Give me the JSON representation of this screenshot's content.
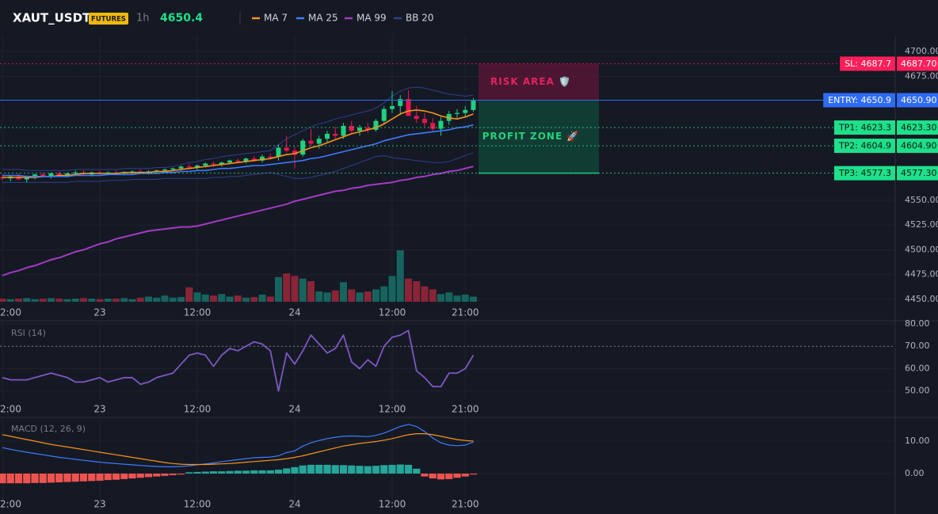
{
  "header": {
    "symbol": "XAUT_USDT",
    "badge": "FUTURES",
    "interval": "1h",
    "last_price": 4650.4
  },
  "chart_data": [
    {
      "type": "candlestick",
      "categories": [
        "2:00",
        null,
        null,
        null,
        null,
        null,
        null,
        null,
        null,
        null,
        null,
        null,
        "23",
        null,
        null,
        null,
        null,
        null,
        null,
        null,
        null,
        null,
        null,
        null,
        "12:00",
        null,
        null,
        null,
        null,
        null,
        null,
        null,
        null,
        null,
        null,
        null,
        "24",
        null,
        null,
        null,
        null,
        null,
        null,
        null,
        null,
        null,
        null,
        null,
        "12:00",
        null,
        null,
        null,
        null,
        null,
        null,
        null,
        null,
        "21:00",
        null
      ],
      "candles": {
        "open": [
          4573,
          4572,
          4574,
          4571,
          4573,
          4576,
          4574,
          4577,
          4575,
          4577,
          4578,
          4576,
          4578,
          4577,
          4578,
          4577,
          4578,
          4579,
          4578,
          4579,
          4580,
          4581,
          4582,
          4584,
          4583,
          4585,
          4587,
          4586,
          4588,
          4590,
          4589,
          4592,
          4590,
          4594,
          4594,
          4603,
          4600,
          4596,
          4610,
          4607,
          4612,
          4617,
          4615,
          4625,
          4620,
          4623,
          4621,
          4630,
          4642,
          4645,
          4652,
          4635,
          4632,
          4628,
          4622,
          4630,
          4637,
          4638,
          4641
        ],
        "high": [
          4576,
          4575,
          4577,
          4575,
          4577,
          4578,
          4578,
          4579,
          4578,
          4580,
          4580,
          4579,
          4580,
          4579,
          4580,
          4579,
          4580,
          4581,
          4580,
          4581,
          4582,
          4583,
          4585,
          4587,
          4586,
          4588,
          4589,
          4589,
          4591,
          4592,
          4593,
          4595,
          4596,
          4597,
          4606,
          4615,
          4604,
          4612,
          4622,
          4615,
          4620,
          4624,
          4628,
          4630,
          4626,
          4628,
          4632,
          4645,
          4660,
          4656,
          4661,
          4645,
          4638,
          4633,
          4634,
          4640,
          4642,
          4645,
          4653
        ],
        "low": [
          4570,
          4569,
          4571,
          4568,
          4571,
          4573,
          4572,
          4574,
          4573,
          4575,
          4575,
          4574,
          4576,
          4575,
          4576,
          4575,
          4576,
          4577,
          4576,
          4577,
          4578,
          4579,
          4580,
          4582,
          4581,
          4583,
          4584,
          4584,
          4586,
          4587,
          4587,
          4589,
          4588,
          4591,
          4590,
          4598,
          4582,
          4594,
          4605,
          4602,
          4608,
          4612,
          4612,
          4618,
          4615,
          4618,
          4619,
          4627,
          4638,
          4636,
          4640,
          4628,
          4624,
          4620,
          4615,
          4626,
          4633,
          4634,
          4639
        ],
        "close": [
          4572,
          4574,
          4571,
          4573,
          4576,
          4574,
          4577,
          4575,
          4577,
          4578,
          4576,
          4578,
          4577,
          4578,
          4577,
          4578,
          4579,
          4578,
          4579,
          4580,
          4581,
          4582,
          4584,
          4583,
          4585,
          4587,
          4586,
          4588,
          4590,
          4589,
          4592,
          4590,
          4594,
          4593,
          4603,
          4600,
          4596,
          4610,
          4607,
          4612,
          4617,
          4615,
          4625,
          4620,
          4623,
          4621,
          4630,
          4642,
          4645,
          4652,
          4635,
          4632,
          4628,
          4622,
          4630,
          4637,
          4638,
          4641,
          4650.4
        ]
      },
      "up_color": "#1fd17f",
      "down_color": "#e9164d",
      "volume_up_color": "#17645f",
      "volume_down_color": "#8a2537",
      "volume": [
        6,
        5,
        6,
        7,
        5,
        6,
        7,
        6,
        5,
        6,
        7,
        6,
        5,
        6,
        6,
        7,
        5,
        8,
        10,
        8,
        12,
        8,
        9,
        28,
        18,
        14,
        12,
        15,
        10,
        12,
        8,
        9,
        14,
        10,
        48,
        55,
        50,
        45,
        40,
        20,
        18,
        22,
        38,
        24,
        18,
        20,
        24,
        30,
        50,
        100,
        45,
        40,
        30,
        24,
        15,
        18,
        12,
        14,
        10
      ],
      "series": [
        {
          "name": "MA 7",
          "color": "#f7931a",
          "values": [
            4573,
            4573,
            4573,
            4573,
            4573,
            4574,
            4574,
            4575,
            4575,
            4576,
            4577,
            4577,
            4577,
            4577,
            4577,
            4578,
            4578,
            4578,
            4578,
            4579,
            4579,
            4580,
            4581,
            4582,
            4583,
            4584,
            4585,
            4586,
            4587,
            4588,
            4589,
            4590,
            4591,
            4592,
            4594,
            4596,
            4597,
            4600,
            4603,
            4605,
            4608,
            4611,
            4614,
            4617,
            4619,
            4621,
            4623,
            4627,
            4632,
            4637,
            4640,
            4641,
            4640,
            4638,
            4635,
            4633,
            4632,
            4634,
            4637
          ]
        },
        {
          "name": "MA 25",
          "color": "#3d7bfd",
          "values": [
            4575,
            4575,
            4575,
            4574,
            4574,
            4574,
            4574,
            4574,
            4574,
            4575,
            4575,
            4575,
            4575,
            4576,
            4576,
            4576,
            4576,
            4577,
            4577,
            4577,
            4578,
            4578,
            4579,
            4579,
            4580,
            4580,
            4581,
            4582,
            4582,
            4583,
            4584,
            4585,
            4585,
            4586,
            4587,
            4588,
            4589,
            4590,
            4592,
            4593,
            4595,
            4597,
            4599,
            4601,
            4603,
            4605,
            4607,
            4610,
            4612,
            4614,
            4616,
            4617,
            4618,
            4619,
            4620,
            4621,
            4623,
            4624,
            4626
          ]
        },
        {
          "name": "MA 99",
          "color": "#a33bc4",
          "values": [
            4474,
            4477,
            4479,
            4482,
            4484,
            4487,
            4490,
            4492,
            4495,
            4498,
            4500,
            4503,
            4506,
            4508,
            4511,
            4513,
            4515,
            4517,
            4519,
            4520,
            4521,
            4522,
            4523,
            4523,
            4524,
            4526,
            4528,
            4530,
            4532,
            4534,
            4536,
            4538,
            4540,
            4542,
            4544,
            4546,
            4549,
            4551,
            4553,
            4555,
            4557,
            4559,
            4560,
            4562,
            4563,
            4565,
            4566,
            4567,
            4568,
            4570,
            4571,
            4573,
            4574,
            4576,
            4577,
            4579,
            4580,
            4582,
            4584
          ]
        },
        {
          "name": "BB 20",
          "color": "#2e3f8c",
          "upper": [
            4581,
            4581,
            4581,
            4580,
            4580,
            4580,
            4580,
            4580,
            4580,
            4581,
            4581,
            4581,
            4581,
            4581,
            4581,
            4582,
            4582,
            4582,
            4582,
            4583,
            4583,
            4584,
            4586,
            4588,
            4589,
            4591,
            4592,
            4594,
            4595,
            4596,
            4597,
            4598,
            4599,
            4600,
            4606,
            4612,
            4616,
            4620,
            4624,
            4627,
            4629,
            4632,
            4634,
            4636,
            4638,
            4640,
            4643,
            4648,
            4655,
            4660,
            4663,
            4664,
            4663,
            4661,
            4659,
            4657,
            4656,
            4655,
            4656
          ],
          "lower": [
            4568,
            4568,
            4568,
            4568,
            4568,
            4568,
            4568,
            4568,
            4568,
            4569,
            4569,
            4569,
            4569,
            4570,
            4570,
            4570,
            4571,
            4571,
            4571,
            4571,
            4572,
            4572,
            4572,
            4572,
            4572,
            4572,
            4573,
            4573,
            4574,
            4574,
            4575,
            4576,
            4577,
            4578,
            4576,
            4574,
            4572,
            4572,
            4573,
            4575,
            4577,
            4579,
            4582,
            4585,
            4588,
            4591,
            4594,
            4595,
            4593,
            4592,
            4591,
            4590,
            4589,
            4588,
            4588,
            4589,
            4592,
            4595,
            4598
          ]
        }
      ],
      "ylim": [
        4446,
        4716
      ],
      "yticks": [
        {
          "value": 4450,
          "label": "4450.00"
        },
        {
          "value": 4475,
          "label": "4475.00"
        },
        {
          "value": 4500,
          "label": "4500.00"
        },
        {
          "value": 4525,
          "label": "4525.00"
        },
        {
          "value": 4550,
          "label": "4550.00"
        },
        {
          "value": 4675,
          "label": "4675.00"
        },
        {
          "value": 4700,
          "label": "4700.00"
        }
      ],
      "levels": [
        {
          "value": 4687.7,
          "label": "SL: 4687.7",
          "price_label": "4687.70",
          "color": "#ff1f5a",
          "line": "dotted"
        },
        {
          "value": 4650.9,
          "label": "ENTRY: 4650.9",
          "price_label": "4650.90",
          "color": "#2f6bf5",
          "line": "solid"
        },
        {
          "value": 4623.3,
          "label": "TP1: 4623.3",
          "price_label": "4623.30",
          "color": "#1fe08a",
          "line": "dotted"
        },
        {
          "value": 4604.9,
          "label": "TP2: 4604.9",
          "price_label": "4604.90",
          "color": "#1fe08a",
          "line": "dotted"
        },
        {
          "value": 4577.3,
          "label": "TP3: 4577.3",
          "price_label": "4577.30",
          "color": "#1fe08a",
          "line": "dotted"
        }
      ],
      "zones": [
        "RISK AREA 🛡️",
        "PROFIT ZONE 🚀"
      ]
    },
    {
      "type": "line",
      "title": "RSI (14)",
      "color": "#7e57c2",
      "values": [
        56,
        55,
        55,
        55,
        56,
        57,
        58,
        57,
        56,
        54,
        54,
        55,
        56,
        54,
        55,
        56,
        56,
        53,
        54,
        56,
        57,
        58,
        62,
        66,
        67,
        66,
        61,
        66,
        69,
        68,
        70,
        72,
        71,
        68,
        50,
        67,
        62,
        68,
        75,
        71,
        67,
        69,
        75,
        63,
        60,
        64,
        61,
        70,
        74,
        75,
        77,
        59,
        56,
        52,
        52,
        58,
        58,
        60,
        66
      ],
      "ylim": [
        46,
        81.4
      ],
      "yticks": [
        {
          "value": 50,
          "label": "50.00"
        },
        {
          "value": 60,
          "label": "60.00"
        },
        {
          "value": 70,
          "label": "70.00"
        },
        {
          "value": 80,
          "label": "80.00"
        }
      ],
      "levels": [
        70
      ]
    },
    {
      "type": "macd",
      "title": "MACD (12, 26, 9)",
      "macd": {
        "color": "#3d7bfd",
        "values": [
          8,
          7.5,
          7,
          6.6,
          6.2,
          5.8,
          5.4,
          5,
          4.7,
          4.4,
          4.1,
          3.8,
          3.5,
          3.3,
          3.1,
          2.9,
          2.7,
          2.5,
          2.3,
          2.2,
          2.1,
          2.1,
          2.2,
          2.4,
          2.7,
          3,
          3.3,
          3.7,
          4,
          4.3,
          4.6,
          4.9,
          5,
          5.1,
          5.5,
          6.5,
          7,
          8.5,
          9.5,
          10.2,
          10.8,
          11.2,
          11.5,
          11.6,
          11.5,
          11.4,
          11.8,
          12.5,
          13.5,
          14.5,
          15.2,
          14.5,
          13,
          11,
          9.5,
          8.8,
          8.6,
          8.8,
          9.8
        ]
      },
      "signal": {
        "color": "#f7931a",
        "values": [
          12,
          11.5,
          11,
          10.5,
          10,
          9.5,
          9,
          8.6,
          8.2,
          7.8,
          7.4,
          7,
          6.6,
          6.2,
          5.8,
          5.4,
          5,
          4.6,
          4.2,
          3.8,
          3.4,
          3.1,
          2.9,
          2.8,
          2.8,
          2.8,
          2.9,
          3,
          3.1,
          3.3,
          3.5,
          3.7,
          3.9,
          4.1,
          4.3,
          4.6,
          5,
          5.5,
          6.1,
          6.7,
          7.3,
          7.9,
          8.5,
          8.9,
          9.3,
          9.6,
          9.9,
          10.3,
          10.8,
          11.4,
          12,
          12.3,
          12.3,
          12,
          11.5,
          11,
          10.5,
          10.2,
          10
        ]
      },
      "histogram": {
        "up_color": "#26a69a",
        "down_color": "#ef5350",
        "values": [
          -3,
          -3,
          -3,
          -3,
          -2.9,
          -2.9,
          -2.8,
          -2.7,
          -2.6,
          -2.5,
          -2.4,
          -2.3,
          -2.2,
          -2,
          -1.9,
          -1.7,
          -1.5,
          -1.3,
          -1.1,
          -0.9,
          -0.7,
          -0.5,
          -0.3,
          0.4,
          0.5,
          0.6,
          0.7,
          0.7,
          0.8,
          0.9,
          0.9,
          1,
          1,
          1,
          1.2,
          1.6,
          2,
          2.5,
          2.7,
          2.7,
          2.7,
          2.6,
          2.6,
          2.5,
          2.4,
          2.3,
          2.4,
          2.6,
          2.7,
          2.8,
          2.7,
          1.5,
          -0.9,
          -1.5,
          -1.8,
          -1.7,
          -1.3,
          -0.9,
          -0.3
        ]
      },
      "ylim": [
        -11.5,
        17.1
      ],
      "yticks": [
        {
          "value": 0,
          "label": "0.00"
        },
        {
          "value": 10,
          "label": "10.00"
        }
      ]
    }
  ]
}
